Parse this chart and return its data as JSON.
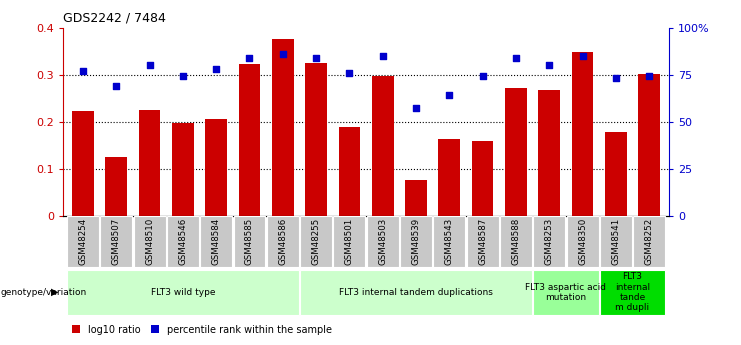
{
  "title": "GDS2242 / 7484",
  "categories": [
    "GSM48254",
    "GSM48507",
    "GSM48510",
    "GSM48546",
    "GSM48584",
    "GSM48585",
    "GSM48586",
    "GSM48255",
    "GSM48501",
    "GSM48503",
    "GSM48539",
    "GSM48543",
    "GSM48587",
    "GSM48588",
    "GSM48253",
    "GSM48350",
    "GSM48541",
    "GSM48252"
  ],
  "bar_values": [
    0.222,
    0.125,
    0.225,
    0.198,
    0.205,
    0.322,
    0.375,
    0.325,
    0.188,
    0.298,
    0.075,
    0.162,
    0.158,
    0.272,
    0.268,
    0.348,
    0.178,
    0.302
  ],
  "scatter_pct": [
    77,
    69,
    80,
    74,
    78,
    84,
    86,
    84,
    76,
    85,
    57,
    64,
    74,
    84,
    80,
    85,
    73,
    74
  ],
  "bar_color": "#cc0000",
  "scatter_color": "#0000cc",
  "ylim_left": [
    0,
    0.4
  ],
  "ylim_right": [
    0,
    100
  ],
  "yticks_left": [
    0,
    0.1,
    0.2,
    0.3,
    0.4
  ],
  "yticks_right": [
    0,
    25,
    50,
    75,
    100
  ],
  "yticklabels_right": [
    "0",
    "25",
    "50",
    "75",
    "100%"
  ],
  "dotted_lines": [
    0.1,
    0.2,
    0.3
  ],
  "groups": [
    {
      "label": "FLT3 wild type",
      "start": 0,
      "end": 6,
      "color": "#ccffcc"
    },
    {
      "label": "FLT3 internal tandem duplications",
      "start": 7,
      "end": 13,
      "color": "#ccffcc"
    },
    {
      "label": "FLT3 aspartic acid\nmutation",
      "start": 14,
      "end": 15,
      "color": "#99ff99"
    },
    {
      "label": "FLT3\ninternal\ntande\nm dupli",
      "start": 16,
      "end": 17,
      "color": "#00dd00"
    }
  ],
  "genotype_label": "genotype/variation",
  "legend_red": "log10 ratio",
  "legend_blue": "percentile rank within the sample",
  "tick_bg_color": "#c8c8c8"
}
